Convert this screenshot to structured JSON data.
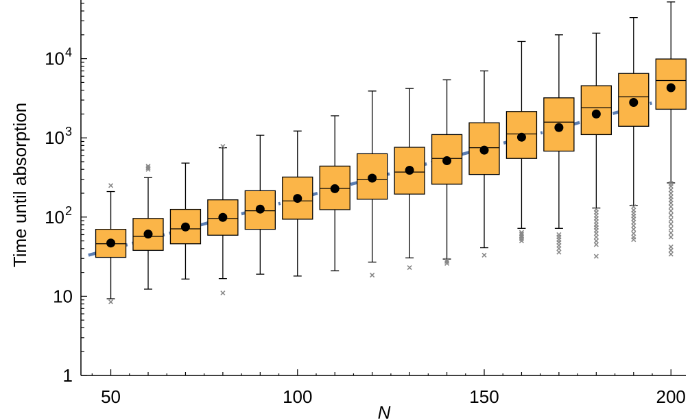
{
  "chart_data": {
    "type": "box",
    "title": "",
    "xlabel": "N",
    "ylabel": "Time until absorption",
    "y_scale": "log",
    "xlim": [
      42,
      204
    ],
    "ylim": [
      1,
      60000
    ],
    "x_ticks": [
      {
        "value": 50,
        "label": "50"
      },
      {
        "value": 100,
        "label": "100"
      },
      {
        "value": 150,
        "label": "150"
      },
      {
        "value": 200,
        "label": "200"
      }
    ],
    "y_ticks": [
      {
        "value": 1,
        "label": "1",
        "sup": ""
      },
      {
        "value": 10,
        "label": "10",
        "sup": ""
      },
      {
        "value": 100,
        "label": "10",
        "sup": "2"
      },
      {
        "value": 1000,
        "label": "10",
        "sup": "3"
      },
      {
        "value": 10000,
        "label": "10",
        "sup": "4"
      }
    ],
    "colors": {
      "box_fill": "#FBB548",
      "box_stroke": "#000000",
      "mean_marker": "#000000",
      "outlier": "#888888",
      "fit_line": "#5B7DB1"
    },
    "boxes": [
      {
        "n": 50,
        "whisker_low": 9.3,
        "q1": 31,
        "median": 46,
        "q3": 70,
        "whisker_high": 210,
        "mean": 47,
        "outliers": [
          250,
          8.5
        ]
      },
      {
        "n": 60,
        "whisker_low": 12.3,
        "q1": 38,
        "median": 57,
        "q3": 96,
        "whisker_high": 315,
        "mean": 61,
        "outliers": [
          400,
          420,
          440
        ]
      },
      {
        "n": 70,
        "whisker_low": 16.5,
        "q1": 46,
        "median": 71,
        "q3": 125,
        "whisker_high": 480,
        "mean": 75,
        "outliers": []
      },
      {
        "n": 80,
        "whisker_low": 16.7,
        "q1": 59,
        "median": 96,
        "q3": 165,
        "whisker_high": 750,
        "mean": 99,
        "outliers": [
          780,
          11
        ]
      },
      {
        "n": 90,
        "whisker_low": 19,
        "q1": 70,
        "median": 120,
        "q3": 215,
        "whisker_high": 1080,
        "mean": 126,
        "outliers": []
      },
      {
        "n": 100,
        "whisker_low": 18,
        "q1": 94,
        "median": 160,
        "q3": 320,
        "whisker_high": 1220,
        "mean": 172,
        "outliers": []
      },
      {
        "n": 110,
        "whisker_low": 21,
        "q1": 124,
        "median": 230,
        "q3": 440,
        "whisker_high": 1900,
        "mean": 228,
        "outliers": []
      },
      {
        "n": 120,
        "whisker_low": 27,
        "q1": 168,
        "median": 300,
        "q3": 630,
        "whisker_high": 3900,
        "mean": 310,
        "outliers": [
          18.5
        ]
      },
      {
        "n": 130,
        "whisker_low": 30.5,
        "q1": 195,
        "median": 370,
        "q3": 760,
        "whisker_high": 4200,
        "mean": 390,
        "outliers": [
          23
        ]
      },
      {
        "n": 140,
        "whisker_low": 29.5,
        "q1": 260,
        "median": 550,
        "q3": 1100,
        "whisker_high": 5400,
        "mean": 515,
        "outliers": [
          26,
          27.5,
          28.5
        ]
      },
      {
        "n": 150,
        "whisker_low": 41,
        "q1": 345,
        "median": 750,
        "q3": 1550,
        "whisker_high": 7000,
        "mean": 700,
        "outliers": [
          33
        ]
      },
      {
        "n": 160,
        "whisker_low": 72,
        "q1": 550,
        "median": 1120,
        "q3": 2150,
        "whisker_high": 16500,
        "mean": 1020,
        "outliers": [
          50,
          53,
          56,
          58,
          61,
          64
        ]
      },
      {
        "n": 170,
        "whisker_low": 72,
        "q1": 680,
        "median": 1580,
        "q3": 3200,
        "whisker_high": 20000,
        "mean": 1350,
        "outliers": [
          36,
          40,
          44,
          48,
          52,
          56,
          60
        ]
      },
      {
        "n": 180,
        "whisker_low": 130,
        "q1": 1100,
        "median": 2400,
        "q3": 4550,
        "whisker_high": 21000,
        "mean": 2000,
        "outliers": [
          32,
          45,
          50,
          56,
          62,
          68,
          74,
          80,
          88,
          96,
          105,
          115,
          125
        ]
      },
      {
        "n": 190,
        "whisker_low": 140,
        "q1": 1400,
        "median": 3300,
        "q3": 6500,
        "whisker_high": 33000,
        "mean": 2800,
        "outliers": [
          52,
          56,
          62,
          70,
          78,
          86,
          95,
          103,
          112,
          122,
          135
        ]
      },
      {
        "n": 200,
        "whisker_low": 270,
        "q1": 2300,
        "median": 5300,
        "q3": 9900,
        "whisker_high": 52000,
        "mean": 4300,
        "outliers": [
          34,
          38,
          42,
          56,
          63,
          72,
          82,
          93,
          106,
          120,
          135,
          150,
          165,
          180,
          200,
          220,
          245,
          265
        ]
      }
    ],
    "fit_line": {
      "style": "dash-dot",
      "points": [
        [
          44,
          33
        ],
        [
          204,
          3600
        ]
      ]
    }
  }
}
